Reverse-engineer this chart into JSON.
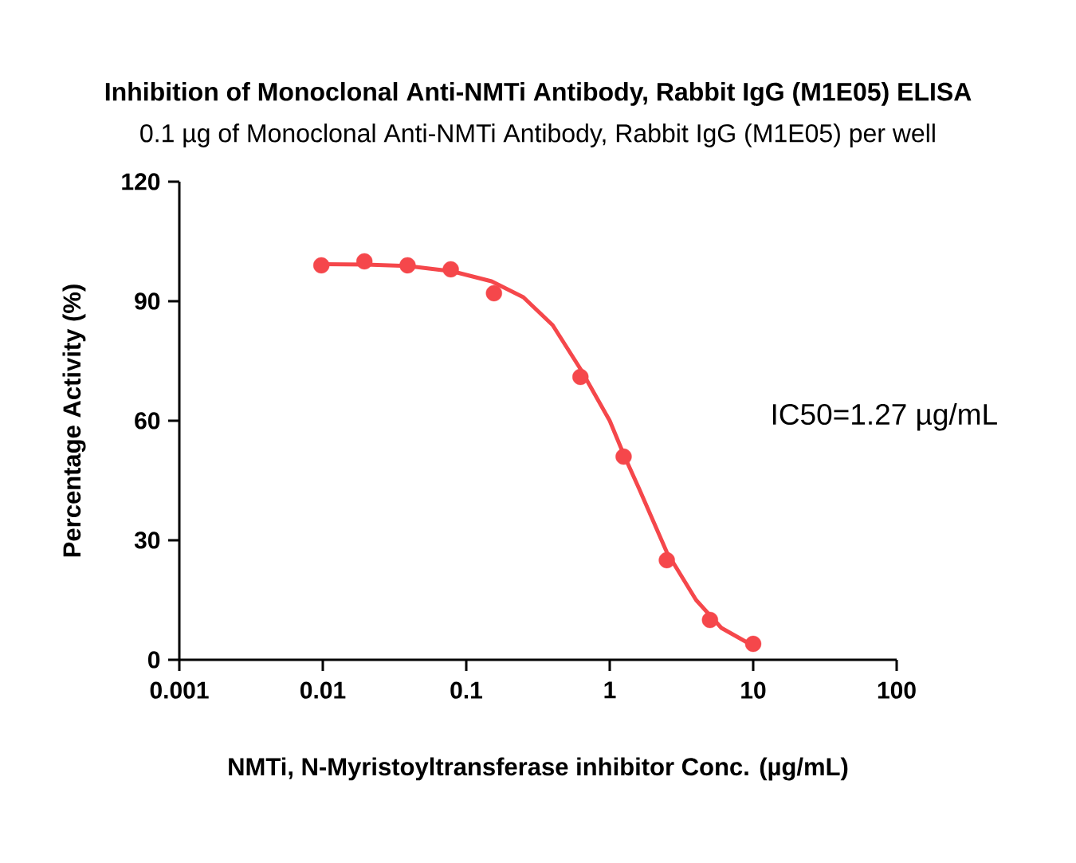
{
  "chart_data": {
    "type": "scatter",
    "title": "Inhibition of Monoclonal Anti-NMTi Antibody, Rabbit IgG (M1E05) ELISA",
    "subtitle": "0.1 µg of Monoclonal Anti-NMTi Antibody, Rabbit IgG (M1E05) per well",
    "xlabel": "NMTi, N-Myristoyltransferase inhibitor Conc. (µg/mL)",
    "ylabel": "Percentage Activity (%)",
    "log": "x",
    "xlim": [
      0.001,
      100
    ],
    "xticks": [
      0.001,
      0.01,
      0.1,
      1,
      10,
      100
    ],
    "ylim": [
      0,
      120
    ],
    "yticks": [
      0,
      30,
      60,
      90,
      120
    ],
    "annotations": [
      "IC50=1.27 µg/mL"
    ],
    "series": [
      {
        "marker": "circle",
        "color": "#f5474b",
        "x": [
          0.00977,
          0.0195,
          0.039,
          0.078,
          0.156,
          0.625,
          1.25,
          2.5,
          5,
          10
        ],
        "values": [
          99,
          100,
          99,
          98,
          92,
          71,
          51,
          25,
          10,
          4
        ]
      },
      {
        "type": "line",
        "marker": "none",
        "line_style": "solid",
        "color": "#f5474b",
        "x": [
          0.00977,
          0.02,
          0.04,
          0.08,
          0.15,
          0.25,
          0.4,
          0.625,
          1.0,
          1.27,
          1.6,
          2.5,
          4,
          6,
          10
        ],
        "values": [
          99.3,
          99.2,
          98.8,
          97.5,
          95,
          91,
          84,
          73,
          60,
          51,
          43,
          27,
          15,
          8,
          3.5
        ]
      }
    ]
  }
}
